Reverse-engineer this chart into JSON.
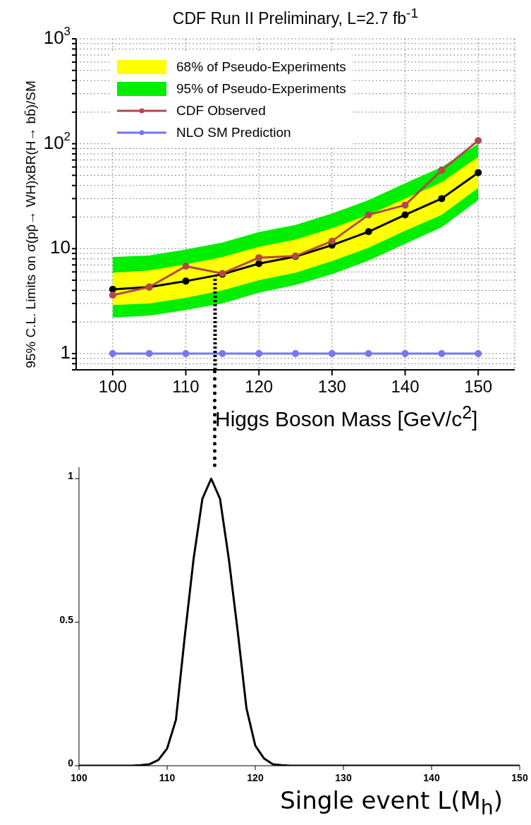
{
  "chart_data": [
    {
      "type": "line",
      "title": "CDF Run II Preliminary, L=2.7 fb$^{-1}$",
      "xlabel": "Higgs Boson Mass [GeV/c$^{2}$]",
      "ylabel": "95% C.L. Limits on σ(pp̄→ WH)xBR(H→ bb̄)/SM",
      "x": [
        100,
        105,
        110,
        115,
        120,
        125,
        130,
        135,
        140,
        145,
        150
      ],
      "series": [
        {
          "name": "68% of Pseudo-Experiments",
          "color": "#ffff00",
          "values": [
            null,
            null,
            null,
            null,
            null,
            null,
            null,
            null,
            null,
            null,
            null
          ],
          "lower": [
            2.9,
            3.0,
            3.4,
            4.0,
            5.0,
            5.9,
            7.6,
            10.2,
            14.8,
            21,
            38
          ],
          "upper": [
            5.9,
            6.2,
            7.1,
            8.3,
            10.4,
            12.2,
            15.6,
            21,
            30,
            43,
            75
          ]
        },
        {
          "name": "95% of Pseudo-Experiments",
          "color": "#00ee00",
          "values": [
            null,
            null,
            null,
            null,
            null,
            null,
            null,
            null,
            null,
            null,
            null
          ],
          "lower": [
            2.2,
            2.3,
            2.6,
            3.0,
            3.8,
            4.5,
            5.7,
            7.7,
            11.1,
            16,
            29
          ],
          "upper": [
            8.3,
            8.6,
            9.8,
            11.4,
            14.4,
            16.8,
            21.6,
            29,
            42,
            60,
            100
          ]
        },
        {
          "color": "#000000",
          "marker": "circle",
          "values": [
            4.1,
            4.3,
            4.9,
            5.7,
            7.2,
            8.4,
            10.8,
            14.5,
            21,
            30,
            53
          ]
        },
        {
          "name": "CDF Observed",
          "color": "#b04a48",
          "marker": "circle",
          "values": [
            3.6,
            4.3,
            6.8,
            5.8,
            8.2,
            8.5,
            11.8,
            21,
            26,
            56,
            107
          ]
        },
        {
          "name": "NLO SM Prediction",
          "color": "#7777ee",
          "marker": "circle",
          "values": [
            1,
            1,
            1,
            1,
            1,
            1,
            1,
            1,
            1,
            1,
            1
          ]
        }
      ],
      "log": "y",
      "xlim": [
        95,
        155
      ],
      "xticks": [
        100,
        110,
        120,
        130,
        140,
        150
      ],
      "ylim": [
        0.7,
        1000
      ],
      "yticks": [
        {
          "value": 0.7,
          "label": null
        },
        {
          "value": 0.8,
          "label": null
        },
        {
          "value": 0.9,
          "label": null
        },
        1,
        {
          "value": 2,
          "label": null
        },
        {
          "value": 3,
          "label": null
        },
        {
          "value": 4,
          "label": null
        },
        {
          "value": 5,
          "label": null
        },
        {
          "value": 6,
          "label": null
        },
        {
          "value": 7,
          "label": null
        },
        {
          "value": 8,
          "label": null
        },
        {
          "value": 9,
          "label": null
        },
        10,
        {
          "value": 20,
          "label": null
        },
        {
          "value": 30,
          "label": null
        },
        {
          "value": 40,
          "label": null
        },
        {
          "value": 50,
          "label": null
        },
        {
          "value": 60,
          "label": null
        },
        {
          "value": 70,
          "label": null
        },
        {
          "value": 80,
          "label": null
        },
        {
          "value": 90,
          "label": null
        },
        {
          "value": 100,
          "label": "10$^{2}$"
        },
        {
          "value": 200,
          "label": null
        },
        {
          "value": 300,
          "label": null
        },
        {
          "value": 400,
          "label": null
        },
        {
          "value": 500,
          "label": null
        },
        {
          "value": 600,
          "label": null
        },
        {
          "value": 700,
          "label": null
        },
        {
          "value": 800,
          "label": null
        },
        {
          "value": 900,
          "label": null
        },
        {
          "value": 1000,
          "label": "10$^{3}$"
        }
      ],
      "grid": true,
      "legend": "top left",
      "ref_lines": [
        {
          "axis": "x",
          "value": 114,
          "color": "#000000",
          "line_style": "dotted"
        }
      ]
    },
    {
      "type": "line",
      "xlabel": "Single event L(M$_{h}$)",
      "x": [
        100,
        106,
        107,
        108,
        109,
        110,
        111,
        112,
        113,
        114,
        115,
        116,
        117,
        118,
        119,
        120,
        121,
        122,
        123,
        124,
        150
      ],
      "values": [
        0,
        0,
        0.002,
        0.005,
        0.02,
        0.06,
        0.16,
        0.45,
        0.72,
        0.93,
        1,
        0.93,
        0.72,
        0.47,
        0.2,
        0.07,
        0.025,
        0.005,
        0.002,
        0,
        0
      ],
      "color": "#000000",
      "xlim": [
        100,
        150
      ],
      "xticks": [
        100,
        110,
        120,
        130,
        140,
        150
      ],
      "ylim": [
        0,
        1.04
      ],
      "yticks": [
        0,
        0.5,
        1
      ],
      "grid": false
    }
  ]
}
